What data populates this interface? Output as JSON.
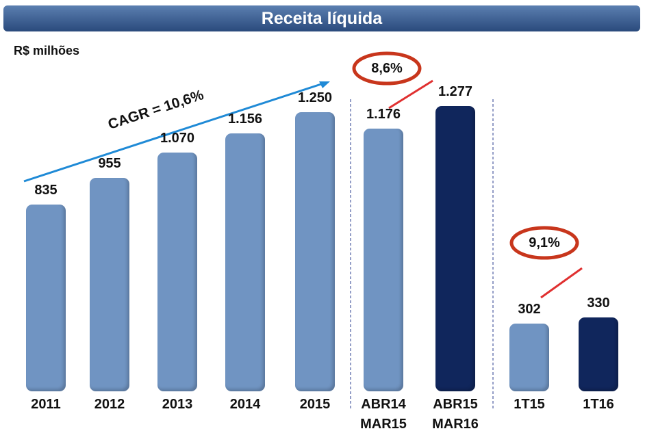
{
  "chart_data": {
    "type": "bar",
    "title": "Receita líquida",
    "subtitle": "R$ milhões",
    "categories": [
      "2011",
      "2012",
      "2013",
      "2014",
      "2015",
      "ABR14\nMAR15",
      "ABR15\nMAR16",
      "1T15",
      "1T16"
    ],
    "values": [
      835,
      955,
      1070,
      1156,
      1250,
      1176,
      1277,
      302,
      330
    ],
    "value_labels": [
      "835",
      "955",
      "1.070",
      "1.156",
      "1.250",
      "1.176",
      "1.277",
      "302",
      "330"
    ],
    "colors": [
      "#7094c2",
      "#7094c2",
      "#7094c2",
      "#7094c2",
      "#7094c2",
      "#7094c2",
      "#10265c",
      "#7094c2",
      "#10265c"
    ],
    "annotations": [
      "CAGR = 10,6%",
      "8,6%",
      "9,1%"
    ]
  }
}
